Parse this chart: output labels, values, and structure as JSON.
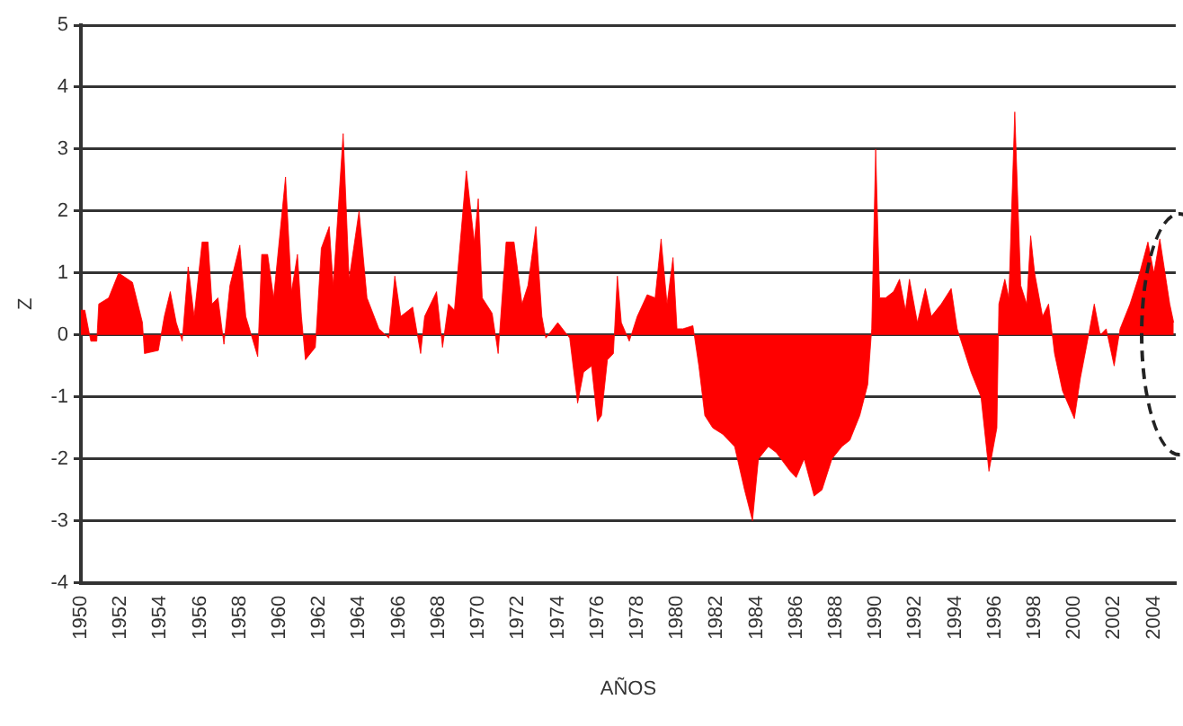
{
  "chart_data": {
    "type": "area",
    "xlabel": "AÑOS",
    "ylabel": "Z",
    "xlim": [
      1950,
      2005.1
    ],
    "xticks": [
      1950,
      1952,
      1954,
      1956,
      1958,
      1960,
      1962,
      1964,
      1966,
      1968,
      1970,
      1972,
      1974,
      1976,
      1978,
      1980,
      1982,
      1984,
      1986,
      1988,
      1990,
      1992,
      1994,
      1996,
      1998,
      2000,
      2002,
      2004
    ],
    "ylim": [
      -4,
      5
    ],
    "yticks": [
      -4,
      -3,
      -2,
      -1,
      0,
      1,
      2,
      3,
      4,
      5
    ],
    "grid": "y",
    "legend": false,
    "marker": "none",
    "series": [
      {
        "color": "#ff0000",
        "x": [
          1950.0,
          1950.2,
          1950.5,
          1950.8,
          1950.9,
          1951.4,
          1951.9,
          1952.6,
          1953.1,
          1953.2,
          1953.9,
          1954.2,
          1954.5,
          1954.8,
          1955.1,
          1955.4,
          1955.7,
          1956.1,
          1956.4,
          1956.6,
          1956.9,
          1957.2,
          1957.5,
          1958.0,
          1958.3,
          1958.9,
          1959.1,
          1959.4,
          1959.7,
          1960.3,
          1960.6,
          1960.9,
          1961.1,
          1961.3,
          1961.8,
          1962.1,
          1962.5,
          1962.7,
          1963.2,
          1963.5,
          1964.0,
          1964.4,
          1965.0,
          1965.5,
          1965.8,
          1966.1,
          1966.7,
          1967.1,
          1967.3,
          1967.9,
          1968.2,
          1968.5,
          1968.8,
          1969.4,
          1969.8,
          1970.0,
          1970.2,
          1970.7,
          1971.0,
          1971.4,
          1971.8,
          1972.2,
          1972.5,
          1972.9,
          1973.2,
          1973.4,
          1974.0,
          1974.6,
          1975.0,
          1975.3,
          1975.7,
          1976.0,
          1976.2,
          1976.5,
          1976.8,
          1977.0,
          1977.2,
          1977.6,
          1978.0,
          1978.5,
          1978.9,
          1979.2,
          1979.5,
          1979.8,
          1980.0,
          1980.3,
          1980.8,
          1981.1,
          1981.4,
          1981.8,
          1982.3,
          1982.9,
          1983.4,
          1983.8,
          1984.1,
          1984.6,
          1985.0,
          1985.7,
          1986.0,
          1986.4,
          1986.9,
          1987.3,
          1987.8,
          1988.3,
          1988.7,
          1989.2,
          1989.6,
          1989.8,
          1990.0,
          1990.2,
          1990.5,
          1990.9,
          1991.2,
          1991.5,
          1991.7,
          1992.1,
          1992.5,
          1992.8,
          1993.3,
          1993.8,
          1994.1,
          1994.4,
          1994.8,
          1995.3,
          1995.7,
          1996.1,
          1996.2,
          1996.5,
          1996.7,
          1997.0,
          1997.3,
          1997.6,
          1997.8,
          1998.0,
          1998.4,
          1998.7,
          1999.0,
          1999.4,
          2000.0,
          2000.3,
          2000.6,
          2001.0,
          2001.3,
          2001.6,
          2002.0,
          2002.3,
          2002.8,
          2003.2,
          2003.7,
          2004.0,
          2004.3,
          2004.8,
          2005.0
        ],
        "values": [
          0.4,
          0.4,
          -0.1,
          -0.1,
          0.5,
          0.6,
          1.0,
          0.85,
          0.2,
          -0.3,
          -0.25,
          0.3,
          0.7,
          0.2,
          -0.1,
          1.1,
          0.3,
          1.5,
          1.5,
          0.5,
          0.6,
          -0.15,
          0.8,
          1.45,
          0.3,
          -0.35,
          1.3,
          1.3,
          0.6,
          2.55,
          0.7,
          1.3,
          0.3,
          -0.4,
          -0.2,
          1.4,
          1.75,
          0.8,
          3.25,
          0.9,
          2.0,
          0.6,
          0.1,
          -0.05,
          0.95,
          0.3,
          0.45,
          -0.3,
          0.3,
          0.7,
          -0.2,
          0.5,
          0.4,
          2.65,
          1.5,
          2.2,
          0.6,
          0.35,
          -0.3,
          1.5,
          1.5,
          0.5,
          0.8,
          1.75,
          0.3,
          -0.05,
          0.2,
          -0.05,
          -1.1,
          -0.6,
          -0.5,
          -1.4,
          -1.3,
          -0.4,
          -0.3,
          0.95,
          0.2,
          -0.1,
          0.3,
          0.65,
          0.6,
          1.55,
          0.5,
          1.25,
          0.1,
          0.1,
          0.15,
          -0.5,
          -1.3,
          -1.5,
          -1.6,
          -1.8,
          -2.5,
          -3.0,
          -2.0,
          -1.8,
          -1.9,
          -2.2,
          -2.3,
          -2.0,
          -2.6,
          -2.5,
          -2.0,
          -1.8,
          -1.7,
          -1.3,
          -0.8,
          0.1,
          3.0,
          0.6,
          0.6,
          0.7,
          0.9,
          0.4,
          0.9,
          0.2,
          0.75,
          0.3,
          0.5,
          0.75,
          0.1,
          -0.2,
          -0.6,
          -1.0,
          -2.2,
          -1.5,
          0.5,
          0.9,
          0.6,
          3.6,
          0.8,
          0.5,
          1.6,
          1.0,
          0.3,
          0.5,
          -0.3,
          -0.9,
          -1.35,
          -0.7,
          -0.2,
          0.5,
          0.0,
          0.1,
          -0.5,
          0.1,
          0.5,
          0.9,
          1.5,
          1.0,
          1.55,
          0.5,
          0.2
        ]
      }
    ]
  }
}
